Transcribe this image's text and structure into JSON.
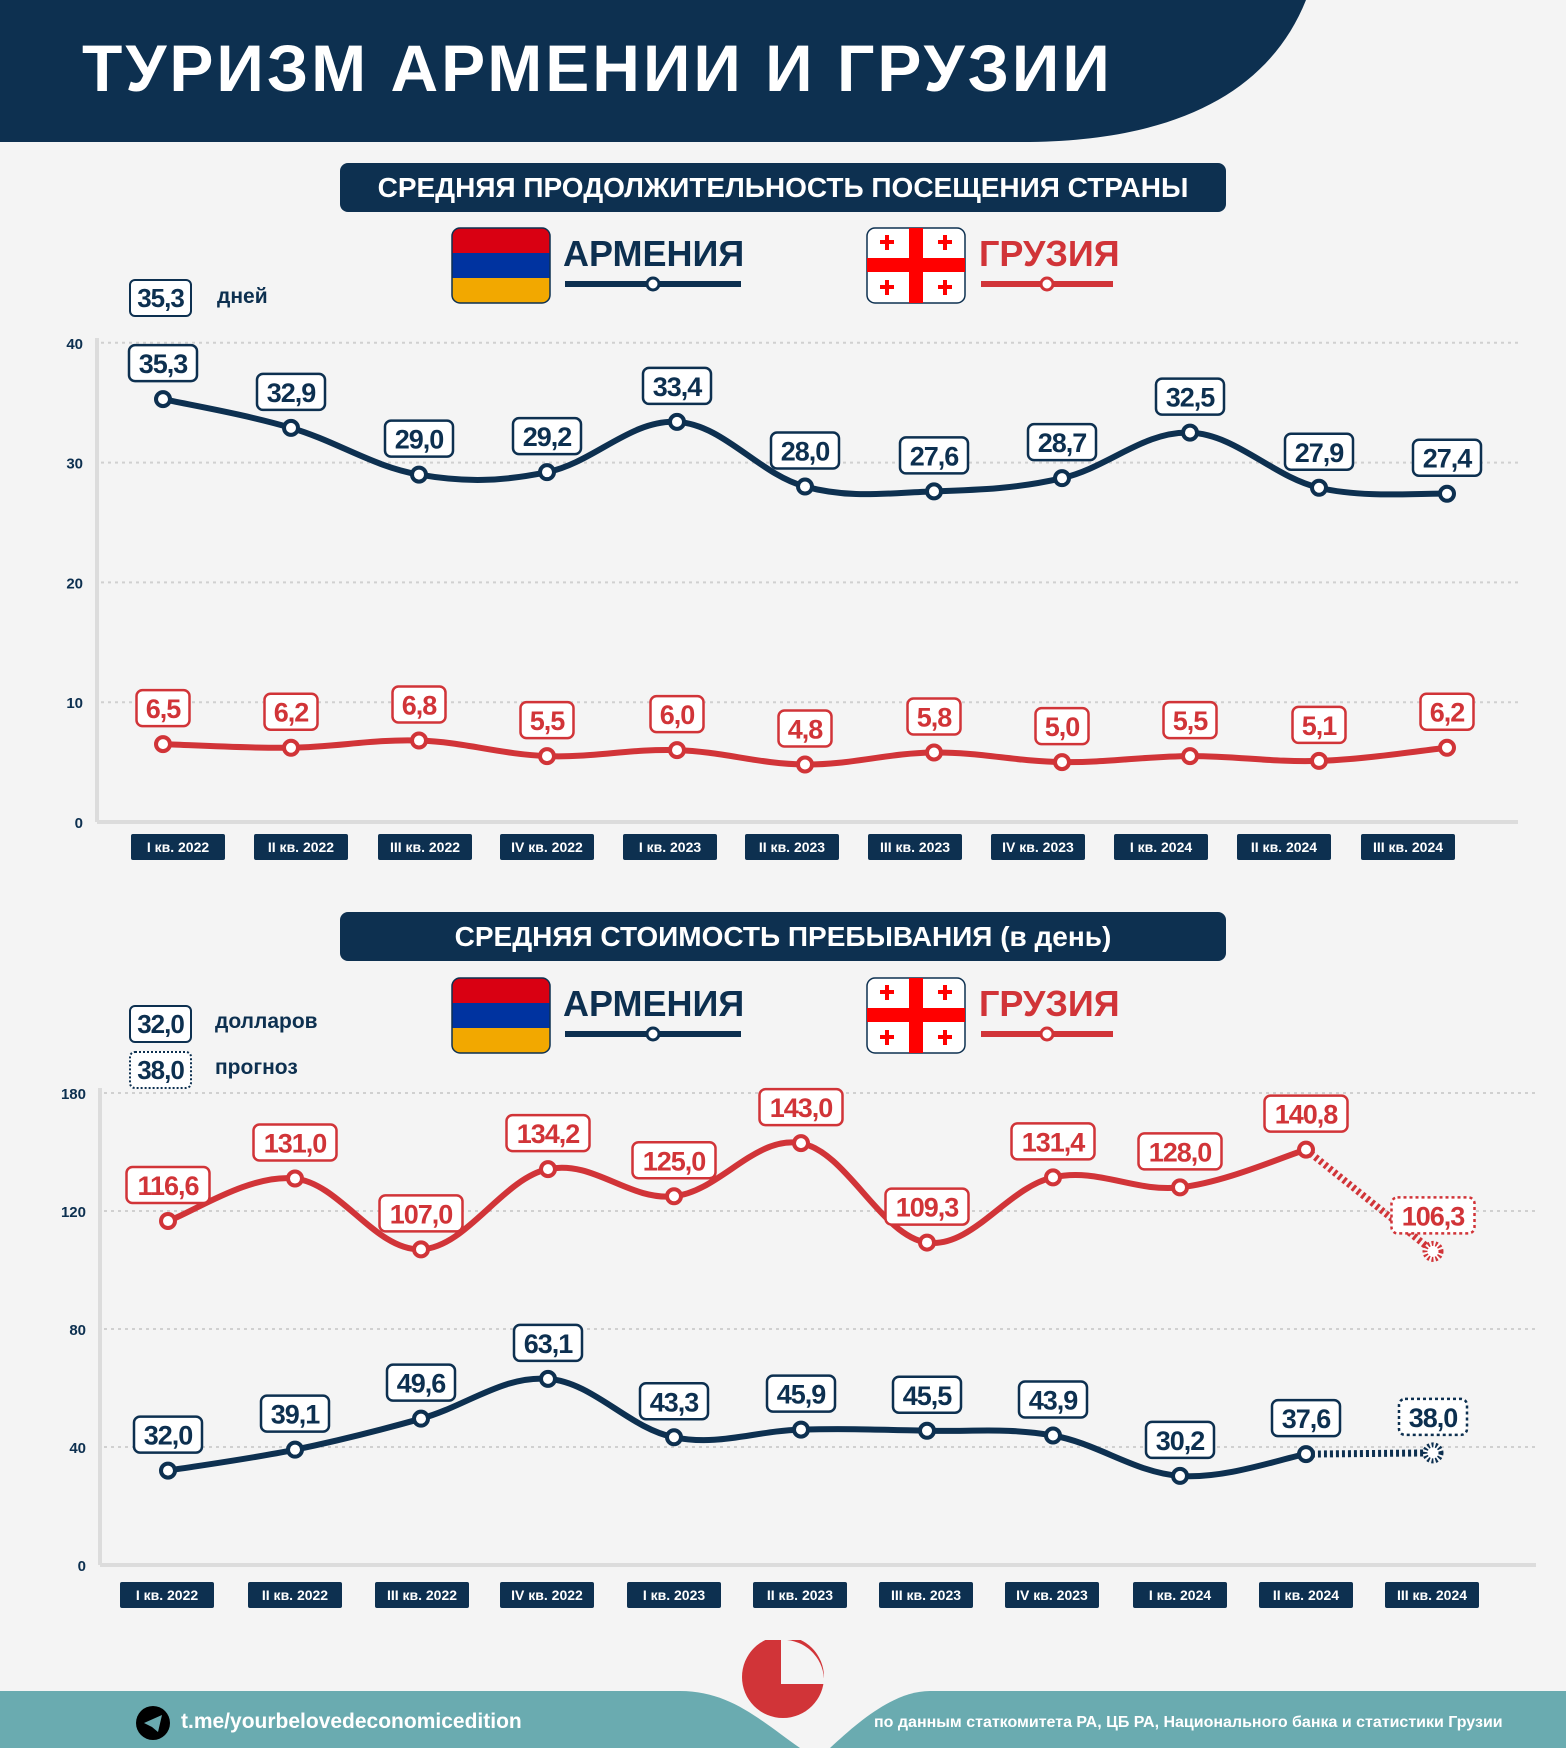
{
  "title": "ТУРИЗМ АРМЕНИИ И ГРУЗИИ",
  "colors": {
    "navy": "#0d3050",
    "red": "#d13438",
    "teal": "#6aabb0",
    "background": "#f4f4f4"
  },
  "legend": {
    "armenia": "АРМЕНИЯ",
    "georgia": "ГРУЗИЯ",
    "armenia_flag": "armenia-flag-icon",
    "georgia_flag": "georgia-flag-icon"
  },
  "chart_data": [
    {
      "type": "line",
      "title": "СРЕДНЯЯ ПРОДОЛЖИТЕЛЬНОСТЬ ПОСЕЩЕНИЯ СТРАНЫ",
      "unit_example": "35,3",
      "unit_label": "дней",
      "categories": [
        "I кв. 2022",
        "II кв. 2022",
        "III кв. 2022",
        "IV кв. 2022",
        "I кв. 2023",
        "II кв. 2023",
        "III кв. 2023",
        "IV кв. 2023",
        "I кв. 2024",
        "II кв. 2024",
        "III кв. 2024"
      ],
      "yticks": [
        "0",
        "10",
        "20",
        "30",
        "40"
      ],
      "ylim": [
        0,
        40
      ],
      "grid": true,
      "series": [
        {
          "name": "АРМЕНИЯ",
          "color": "#0d3050",
          "values": [
            35.3,
            32.9,
            29.0,
            29.2,
            33.4,
            28.0,
            27.6,
            28.7,
            32.5,
            27.9,
            27.4
          ],
          "labels": [
            "35,3",
            "32,9",
            "29,0",
            "29,2",
            "33,4",
            "28,0",
            "27,6",
            "28,7",
            "32,5",
            "27,9",
            "27,4"
          ],
          "forecast": []
        },
        {
          "name": "ГРУЗИЯ",
          "color": "#d13438",
          "values": [
            6.5,
            6.2,
            6.8,
            5.5,
            6.0,
            4.8,
            5.8,
            5.0,
            5.5,
            5.1,
            6.2
          ],
          "labels": [
            "6,5",
            "6,2",
            "6,8",
            "5,5",
            "6,0",
            "4,8",
            "5,8",
            "5,0",
            "5,5",
            "5,1",
            "6,2"
          ],
          "forecast": []
        }
      ]
    },
    {
      "type": "line",
      "title": "СРЕДНЯЯ СТОИМОСТЬ ПРЕБЫВАНИЯ (в день)",
      "unit_example": "32,0",
      "unit_label": "долларов",
      "forecast_example": "38,0",
      "forecast_label": "прогноз",
      "categories": [
        "I кв. 2022",
        "II кв. 2022",
        "III кв. 2022",
        "IV кв. 2022",
        "I кв. 2023",
        "II кв. 2023",
        "III кв. 2023",
        "IV кв. 2023",
        "I кв. 2024",
        "II кв. 2024",
        "III кв. 2024"
      ],
      "yticks": [
        "0",
        "40",
        "80",
        "120",
        "180"
      ],
      "grid": true,
      "series": [
        {
          "name": "ГРУЗИЯ",
          "color": "#d13438",
          "values": [
            116.6,
            131.0,
            107.0,
            134.2,
            125.0,
            143.0,
            109.3,
            131.4,
            128.0,
            140.8,
            106.3
          ],
          "labels": [
            "116,6",
            "131,0",
            "107,0",
            "134,2",
            "125,0",
            "143,0",
            "109,3",
            "131,4",
            "128,0",
            "140,8",
            "106,3"
          ],
          "forecast": [
            10
          ]
        },
        {
          "name": "АРМЕНИЯ",
          "color": "#0d3050",
          "values": [
            32.0,
            39.1,
            49.6,
            63.1,
            43.3,
            45.9,
            45.5,
            43.9,
            30.2,
            37.6,
            38.0
          ],
          "labels": [
            "32,0",
            "39,1",
            "49,6",
            "63,1",
            "43,3",
            "45,9",
            "45,5",
            "43,9",
            "30,2",
            "37,6",
            "38,0"
          ],
          "forecast": [
            10
          ]
        }
      ]
    }
  ],
  "footer": {
    "telegram_icon": "telegram-icon",
    "link": "t.me/yourbelovedeconomicedition",
    "source": "по данным статкомитета РА, ЦБ РА, Национального банка и статистики Грузии"
  }
}
